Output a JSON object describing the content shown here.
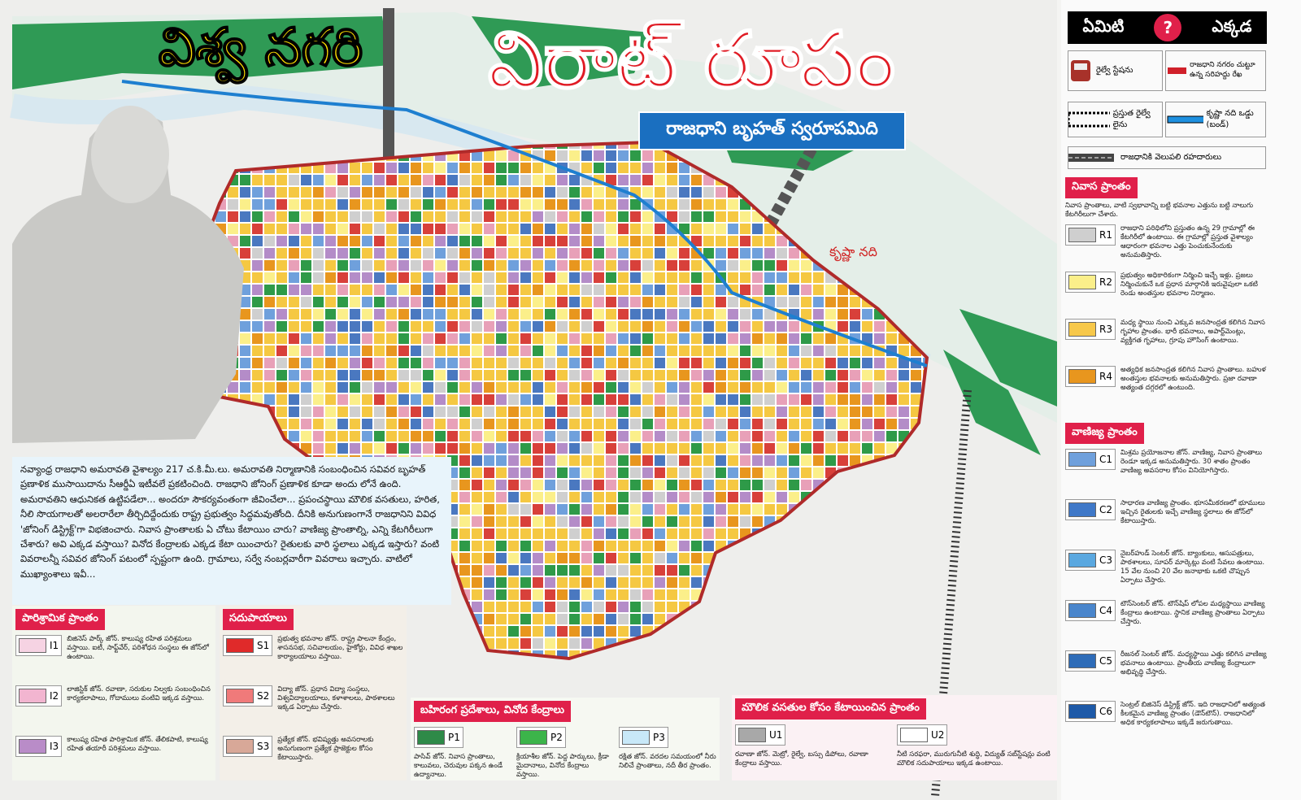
{
  "header": {
    "title_left": "విశ్వ నగరి",
    "title_main": "విరాట్ రూపం",
    "subtitle": "రాజధాని బృహత్ స్వరూపమిది"
  },
  "map": {
    "river_label": "కృష్ణా నది"
  },
  "intro": "నవ్యాంధ్ర రాజధాని అమరావతి వైశాల్యం 217 చ.కి.మీ.లు. అమరావతి నిర్మాణానికి సంబంధించిన సవివర బృహత్ ప్రణాళిక ముసాయిదాను సీఆర్డీఏ ఇటీవలే ప్రకటించింది. రాజధాని జోనింగ్ ప్రణాళిక కూడా అందు లోనే ఉంది. అమరావతిని ఆధునికత ఉట్టిపడేలా... అందరూ సౌకర్యవంతంగా జీవించేలా... ప్రపంచస్థాయి మౌలిక వసతులు, హరిత, నీలి సొయగాలతో అలరారేలా తీర్చిదిద్దేందుకు రాష్ట్ర ప్రభుత్వం సిద్ధమవుతోంది. దీనికి అనుగుణంగానే రాజధానిని వివిధ 'జోనింగ్ డిస్ట్రిక్ట్'గా విభజించారు. నివాస ప్రాంతాలకు ఏ చోటు కేటాయిం చారు? వాణిజ్య ప్రాంతాల్ని, ఎన్ని కేటగిరీలుగా చేశారు? అవి ఎక్కడ వస్తాయి? వినోద కేంద్రాలకు ఎక్కడ కేటా యించారు? రైతులకు వారి స్థలాలు ఎక్కడ ఇస్తారు? వంటి వివరాలన్నీ సవివర జోనింగ్ పటంలో స్పష్టంగా ఉంది. గ్రామాలు, సర్వే నంబర్లవారీగా వివరాలు ఇచ్చారు. వాటిలో ముఖ్యాంశాలు ఇవీ...",
  "legend": {
    "heading_left": "ఏమిటి",
    "heading_mark": "?",
    "heading_right": "ఎక్కడ",
    "station": "రైల్వే స్టేషను",
    "boundary": "రాజధాని నగరం చుట్టూ ఉన్న సరిహద్దు రేఖ",
    "rail": "ప్రస్తుత రైల్వే లైను",
    "bund": "కృష్ణా నది ఒడ్డు (బండ్)",
    "roads": "రాజధానికి వెలుపలి రహదారులు"
  },
  "residential": {
    "heading": "నివాస ప్రాంతం",
    "note": "నివాస ప్రాంతాలు, వాటి స్వభావాన్ని బట్టి భవనాల ఎత్తును బట్టి నాలుగు కేటగిరీలుగా చేశారు.",
    "items": [
      {
        "code": "R1",
        "color": "#cfcfcf",
        "text": "రాజధాని పరిధిలోని ప్రస్తుతం ఉన్న 29 గ్రామాల్లో ఈ కేటగిరీలో ఉంటాయి. ఈ గ్రామాల్లో ప్రస్తుత వైశాల్యం ఆధారంగా భవనాల ఎత్తు పెంచుకునేందుకు అనుమతిస్తారు."
      },
      {
        "code": "R2",
        "color": "#fbef8a",
        "text": "ప్రభుత్వం అధికారికంగా నిర్మించి ఇచ్చే ఇళ్లు. ప్రజలు నిర్మించుకునే ఒక ప్రధాన మార్గానికి ఇరువైపులా ఒకటి రెండు అంతస్తుల భవనాల నిర్మాణం."
      },
      {
        "code": "R3",
        "color": "#f7c84a",
        "text": "మధ్య స్థాయి నుంచి ఎక్కువ జనసాంద్రత కలిగిన నివాస గృహాల ప్రాంతం. భారీ భవనాలు, అపార్ట్‌మెంట్లు, వ్యక్తిగత గృహాలు, గ్రూపు హౌసింగ్ ఉంటాయి."
      },
      {
        "code": "R4",
        "color": "#e8961e",
        "text": "అత్యధిక జనసాంద్రత కలిగిన నివాస ప్రాంతాలు. బహుళ అంతస్తుల భవనాలకు అనుమతిస్తారు. ప్రజా రవాణా అత్యంత దగ్గరలో ఉంటుంది."
      }
    ]
  },
  "commercial": {
    "heading": "వాణిజ్య ప్రాంతం",
    "items": [
      {
        "code": "C1",
        "color": "#6fa0dc",
        "text": "మిశ్రమ ప్రయోజనాల జోన్. వాణిజ్య, నివాస ప్రాంతాలు రెండూ ఇక్కడ అనుమతిస్తారు. 30 శాతం ప్రాంతం వాణిజ్య అవసరాల కోసం వినియోగిస్తారు."
      },
      {
        "code": "C2",
        "color": "#3f78c8",
        "text": "సాధారణ వాణిజ్య ప్రాంతం. భూసమీకరణలో భూములు ఇచ్చిన రైతులకు ఇచ్చే వాణిజ్య స్థలాలు ఈ జోన్‌లో కేటాయిస్తారు."
      },
      {
        "code": "C3",
        "color": "#5aa8e0",
        "text": "నైబర్‌హుడ్ సెంటర్ జోన్. బ్యాంకులు, ఆసుపత్రులు, పాఠశాలలు, సూపర్ మార్కెట్లు వంటి సేవలు ఉంటాయి. 15 వేల నుంచి 20 వేల జనాభాకు ఒకటి చొప్పున ఏర్పాటు చేస్తారు."
      },
      {
        "code": "C4",
        "color": "#4a86cc",
        "text": "టౌన్‌సెంటర్ జోన్. టౌన్‌షిప్ లోపల మధ్యస్థాయి వాణిజ్య కేంద్రాలు ఉంటాయి. స్థానిక వాణిజ్య ప్రాంతాలు ఏర్పాటు చేస్తారు."
      },
      {
        "code": "C5",
        "color": "#2e6cb8",
        "text": "రీజనల్ సెంటర్ జోన్. మధ్యస్థాయి ఎత్తు కలిగిన వాణిజ్య భవనాలు ఉంటాయి. ప్రాంతీయ వాణిజ్య కేంద్రాలుగా అభివృద్ధి చేస్తారు."
      },
      {
        "code": "C6",
        "color": "#1e5aa8",
        "text": "సెంట్రల్ బిజినెస్ డిస్ట్రిక్ట్ జోన్. ఇది రాజధానిలో అత్యంత కీలకమైన వాణిజ్య ప్రాంతం (డౌన్‌టౌన్). రాజధానిలో అధిక కార్యకలాపాలు ఇక్కడే జరుగుతాయి."
      }
    ]
  },
  "industrial": {
    "heading": "పారిశ్రామిక ప్రాంతం",
    "items": [
      {
        "code": "I1",
        "color": "#f6d3e3",
        "text": "బిజినెస్ పార్క్ జోన్. కాలుష్య రహిత పరిశ్రమలు వస్తాయి. ఐటీ, సాఫ్ట్‌వేర్, పరిశోధన సంస్థలు ఈ జోన్‌లో ఉంటాయి."
      },
      {
        "code": "I2",
        "color": "#f2b5d0",
        "text": "లాజిస్టిక్ జోన్. రవాణా, సరుకుల నిల్వకు సంబంధించిన కార్యకలాపాలు, గోదాములు వంటివి ఇక్కడ వస్తాయి."
      },
      {
        "code": "I3",
        "color": "#b98cc8",
        "text": "కాలుష్య రహిత పారిశ్రామిక జోన్. తేలికపాటి, కాలుష్య రహిత తయారీ పరిశ్రమలు వస్తాయి."
      }
    ]
  },
  "amenities": {
    "heading": "సదుపాయాలు",
    "items": [
      {
        "code": "S1",
        "color": "#e02a2a",
        "text": "ప్రభుత్వ భవనాల జోన్. రాష్ట్ర పాలనా కేంద్రం, శాసనసభ, సచివాలయం, హైకోర్టు, వివిధ శాఖల కార్యాలయాలు వస్తాయి."
      },
      {
        "code": "S2",
        "color": "#f07a7a",
        "text": "విద్యా జోన్. ప్రధాన విద్యా సంస్థలు, విశ్వవిద్యాలయాలు, కళాశాలలు, పాఠశాలలు ఇక్కడ ఏర్పాటు చేస్తారు."
      },
      {
        "code": "S3",
        "color": "#d8a898",
        "text": "ప్రత్యేక జోన్. భవిష్యత్తు అవసరాలకు అనుగుణంగా ప్రత్యేక ప్రాజెక్టుల కోసం కేటాయిస్తారు."
      }
    ]
  },
  "open_space": {
    "heading": "బహిరంగ ప్రదేశాలు, వినోద కేంద్రాలు",
    "items": [
      {
        "code": "P1",
        "color": "#2e8a48",
        "text": "పాసివ్ జోన్. నివాస ప్రాంతాలు, కాలువలు, చెరువుల పక్కన ఉండే ఉద్యానాలు."
      },
      {
        "code": "P2",
        "color": "#3cb44a",
        "text": "క్రియాశీల జోన్. పెద్ద పార్కులు, క్రీడా మైదానాలు, వినోద కేంద్రాలు వస్తాయి."
      },
      {
        "code": "P3",
        "color": "#c8e8f8",
        "text": "రక్షిత జోన్. వరదల సమయంలో నీరు నిలిచే ప్రాంతాలు, నదీ తీర ప్రాంతం."
      }
    ]
  },
  "utilities": {
    "heading": "మౌలిక వసతుల కోసం కేటాయించిన ప్రాంతం",
    "items": [
      {
        "code": "U1",
        "color": "#a8a8a8",
        "text": "రవాణా జోన్. మెట్రో, రైల్వే, బస్సు డిపోలు, రవాణా కేంద్రాలు వస్తాయి."
      },
      {
        "code": "U2",
        "color": "#ffffff",
        "text": "నీటి సరఫరా, మురుగునీటి శుద్ధి, విద్యుత్ సబ్‌స్టేషన్లు వంటి మౌలిక సదుపాయాలు ఇక్కడ ఉంటాయి."
      }
    ]
  }
}
